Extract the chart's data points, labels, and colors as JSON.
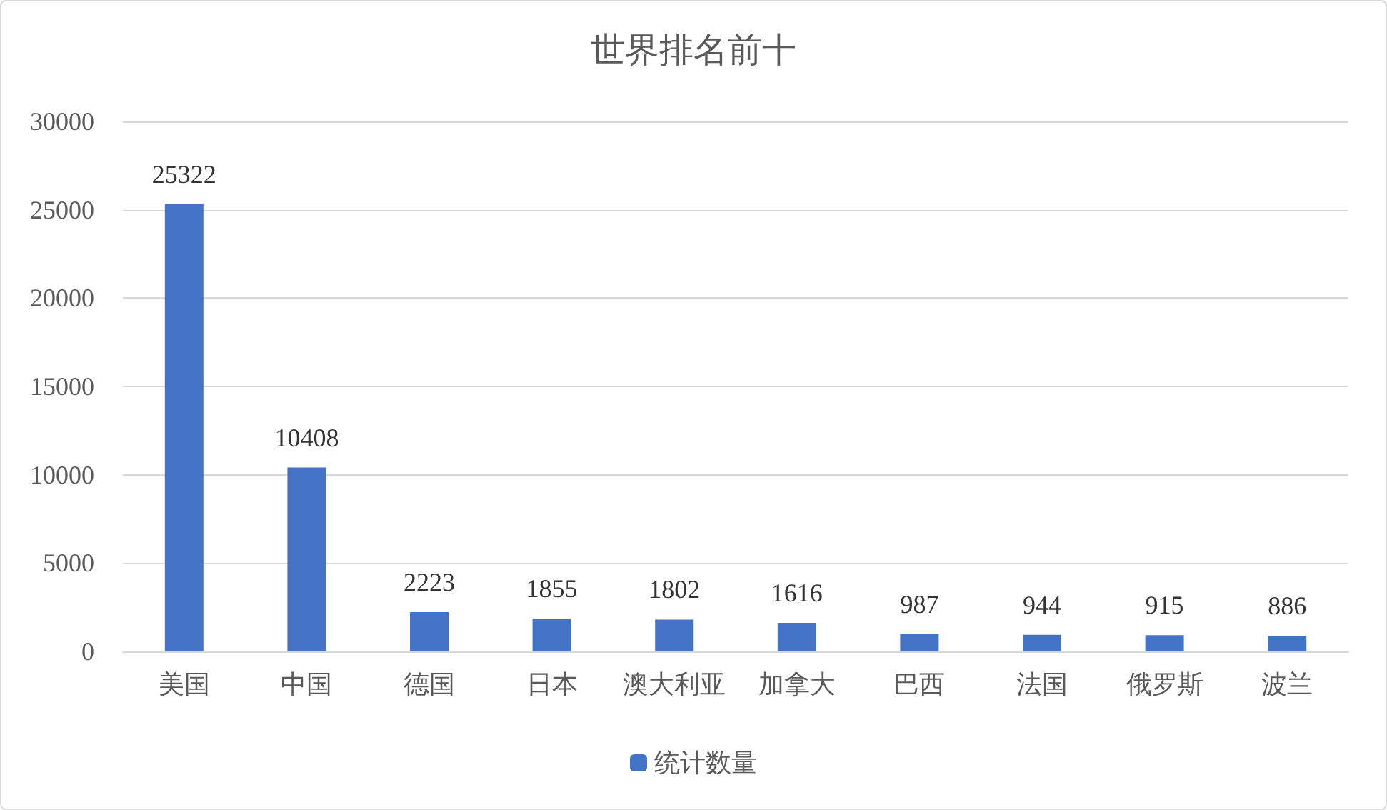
{
  "chart_data": {
    "type": "bar",
    "title": "世界排名前十",
    "categories": [
      "美国",
      "中国",
      "德国",
      "日本",
      "澳大利亚",
      "加拿大",
      "巴西",
      "法国",
      "俄罗斯",
      "波兰"
    ],
    "series": [
      {
        "name": "统计数量",
        "color": "#4472c4",
        "values": [
          25322,
          10408,
          2223,
          1855,
          1802,
          1616,
          987,
          944,
          915,
          886
        ]
      }
    ],
    "ylim": [
      0,
      30000
    ],
    "yticks": [
      0,
      5000,
      10000,
      15000,
      20000,
      25000,
      30000
    ],
    "grid": "y",
    "legend": "bottom",
    "data_labels": true
  }
}
